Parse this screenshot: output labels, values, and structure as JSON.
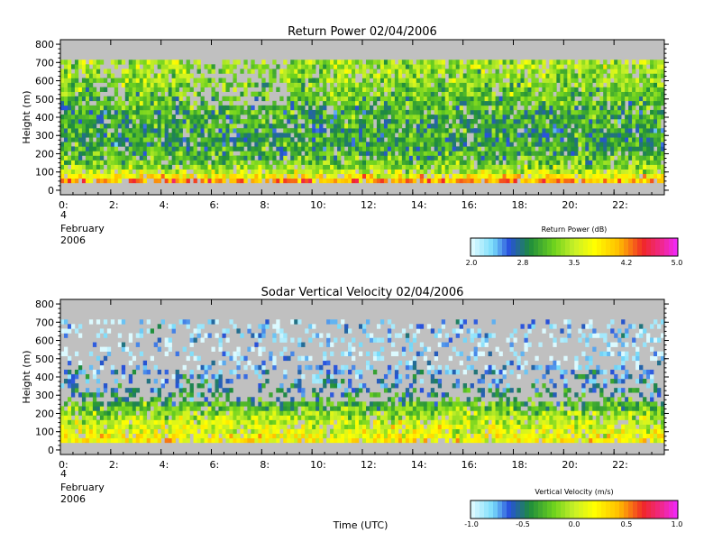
{
  "chart_data": [
    {
      "type": "heatmap",
      "title": "Return Power 02/04/2006",
      "xlabel": "",
      "ylabel": "Height (m)",
      "xlim": [
        0,
        24
      ],
      "ylim": [
        -25,
        825
      ],
      "x_ticks": [
        "0:",
        "2:",
        "4:",
        "6:",
        "8:",
        "10:",
        "12:",
        "14:",
        "16:",
        "18:",
        "20:",
        "22:"
      ],
      "y_ticks": [
        "0",
        "100",
        "200",
        "300",
        "400",
        "500",
        "600",
        "700",
        "800"
      ],
      "date_label": [
        "4",
        "February",
        "2006"
      ],
      "data_range_height": [
        40,
        710
      ],
      "colorbar": {
        "label": "Return Power (dB)",
        "ticks": [
          "2.0",
          "2.8",
          "3.5",
          "4.2",
          "5.0"
        ],
        "min": 2.0,
        "max": 5.0
      },
      "profile_mean_by_height": [
        {
          "height": 50,
          "value": 4.2
        },
        {
          "height": 75,
          "value": 3.6
        },
        {
          "height": 150,
          "value": 3.1
        },
        {
          "height": 250,
          "value": 2.9
        },
        {
          "height": 400,
          "value": 3.0
        },
        {
          "height": 600,
          "value": 3.3
        },
        {
          "height": 700,
          "value": 3.4
        }
      ]
    },
    {
      "type": "heatmap",
      "title": "Sodar Vertical Velocity 02/04/2006",
      "xlabel": "Time (UTC)",
      "ylabel": "Height (m)",
      "xlim": [
        0,
        24
      ],
      "ylim": [
        -25,
        825
      ],
      "x_ticks": [
        "0:",
        "2:",
        "4:",
        "6:",
        "8:",
        "10:",
        "12:",
        "14:",
        "16:",
        "18:",
        "20:",
        "22:"
      ],
      "y_ticks": [
        "0",
        "100",
        "200",
        "300",
        "400",
        "500",
        "600",
        "700",
        "800"
      ],
      "date_label": [
        "4",
        "February",
        "2006"
      ],
      "data_range_height": [
        40,
        710
      ],
      "colorbar": {
        "label": "Vertical Velocity (m/s)",
        "ticks": [
          "-1.0",
          "-0.5",
          "0.0",
          "0.5",
          "1.0"
        ],
        "min": -1.0,
        "max": 1.0
      },
      "profile_mean_by_height": [
        {
          "height": 50,
          "value": 0.2
        },
        {
          "height": 150,
          "value": 0.0
        },
        {
          "height": 300,
          "value": -0.5
        },
        {
          "height": 500,
          "value": -0.9
        },
        {
          "height": 700,
          "value": -0.8
        }
      ]
    }
  ],
  "colors": {
    "background": "#ffffff",
    "missing": "#c0c0c0"
  }
}
